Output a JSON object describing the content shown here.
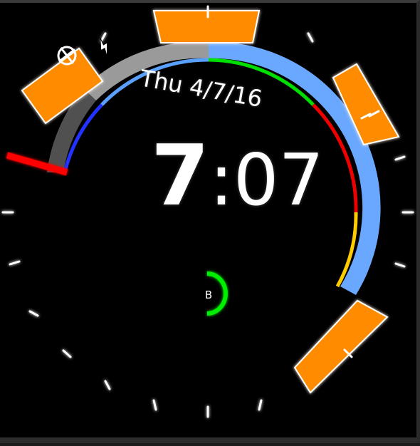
{
  "watchface": {
    "date": "Thu 4/7/16",
    "time": {
      "hour": "7",
      "separator": ":",
      "minute": "07"
    },
    "battery": {
      "label": "B",
      "level": 0.5,
      "color": "#00ee00"
    },
    "status_icons": [
      "airplane-mode-icon",
      "charging-bolt-icon"
    ],
    "colors": {
      "accent_orange": "#ff8c00",
      "outer_ring_blue": "#6aa8ff",
      "arc_gray": "#9a9a9a",
      "arc_dark_gray": "#505050",
      "hand_red": "#ff0000",
      "segment_green": "#00dd00",
      "segment_red": "#ee0000",
      "segment_yellow": "#ffcc00",
      "segment_blue": "#2233ff",
      "tick_white": "#ffffff"
    }
  }
}
